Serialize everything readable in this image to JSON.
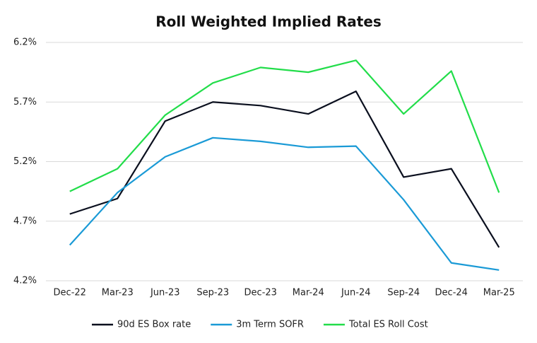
{
  "chart_data": {
    "type": "line",
    "title": "Roll Weighted Implied Rates",
    "categories": [
      "Dec-22",
      "Mar-23",
      "Jun-23",
      "Sep-23",
      "Dec-23",
      "Mar-24",
      "Jun-24",
      "Sep-24",
      "Dec-24",
      "Mar-25"
    ],
    "series": [
      {
        "name": "90d ES Box rate",
        "color": "#0a0f1e",
        "values": [
          4.76,
          4.89,
          5.54,
          5.7,
          5.67,
          5.6,
          5.79,
          5.07,
          5.14,
          4.48
        ]
      },
      {
        "name": "3m  Term SOFR",
        "color": "#1a9ad6",
        "values": [
          4.5,
          4.94,
          5.24,
          5.4,
          5.37,
          5.32,
          5.33,
          4.88,
          4.35,
          4.29
        ]
      },
      {
        "name": "Total ES Roll Cost",
        "color": "#22dd4a",
        "values": [
          4.95,
          5.14,
          5.59,
          5.86,
          5.99,
          5.95,
          6.05,
          5.6,
          5.96,
          4.94
        ]
      }
    ],
    "ylim": [
      4.2,
      6.2
    ],
    "yticks": [
      {
        "value": 4.2,
        "label": "4.2%"
      },
      {
        "value": 4.7,
        "label": "4.7%"
      },
      {
        "value": 5.2,
        "label": "5.2%"
      },
      {
        "value": 5.7,
        "label": "5.7%"
      },
      {
        "value": 6.2,
        "label": "6.2%"
      }
    ],
    "grid": true,
    "legend": "bottom"
  }
}
